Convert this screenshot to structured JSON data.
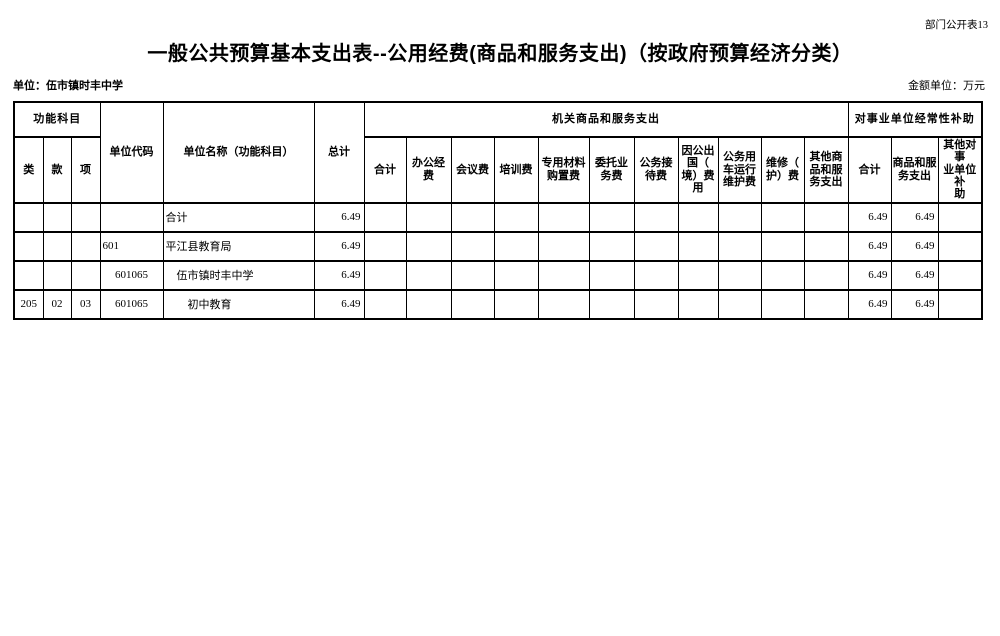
{
  "page": {
    "corner_label": "部门公开表13",
    "title": "一般公共预算基本支出表--公用经费(商品和服务支出)（按政府预算经济分类）",
    "unit_label": "单位：伍市镇时丰中学",
    "amount_unit_label": "金额单位：万元"
  },
  "table": {
    "header": {
      "func_group": "功能科目",
      "func_cols": [
        "类",
        "款",
        "项"
      ],
      "unit_code": "单位代码",
      "unit_name": "单位名称（功能科目）",
      "grand_total": "总计",
      "org_group": "机关商品和服务支出",
      "org_cols": [
        "合计",
        "办公经\n费",
        "会议费",
        "培训费",
        "专用材料\n购置费",
        "委托业\n务费",
        "公务接\n待费",
        "因公出\n国（\n境）费\n用",
        "公务用\n车运行\n维护费",
        "维修（\n护）费",
        "其他商\n品和服\n务支出"
      ],
      "subsidy_group": "对事业单位经常性补助",
      "subsidy_cols": [
        "合计",
        "商品和服\n务支出",
        "其他对事\n业单位补\n助"
      ]
    },
    "rows": [
      {
        "cls": "",
        "kuan": "",
        "xiang": "",
        "code": "",
        "code_align": "left",
        "name": "合计",
        "name_indent": 0,
        "total": "6.49",
        "org": [
          "",
          "",
          "",
          "",
          "",
          "",
          "",
          "",
          "",
          "",
          ""
        ],
        "subsidy": [
          "6.49",
          "6.49",
          ""
        ]
      },
      {
        "cls": "",
        "kuan": "",
        "xiang": "",
        "code": "601",
        "code_align": "left",
        "name": "平江县教育局",
        "name_indent": 0,
        "total": "6.49",
        "org": [
          "",
          "",
          "",
          "",
          "",
          "",
          "",
          "",
          "",
          "",
          ""
        ],
        "subsidy": [
          "6.49",
          "6.49",
          ""
        ]
      },
      {
        "cls": "",
        "kuan": "",
        "xiang": "",
        "code": "601065",
        "code_align": "center",
        "name": "伍市镇时丰中学",
        "name_indent": 1,
        "total": "6.49",
        "org": [
          "",
          "",
          "",
          "",
          "",
          "",
          "",
          "",
          "",
          "",
          ""
        ],
        "subsidy": [
          "6.49",
          "6.49",
          ""
        ]
      },
      {
        "cls": "205",
        "kuan": "02",
        "xiang": "03",
        "code": "601065",
        "code_align": "center",
        "name": "初中教育",
        "name_indent": 2,
        "total": "6.49",
        "org": [
          "",
          "",
          "",
          "",
          "",
          "",
          "",
          "",
          "",
          "",
          ""
        ],
        "subsidy": [
          "6.49",
          "6.49",
          ""
        ]
      }
    ]
  }
}
